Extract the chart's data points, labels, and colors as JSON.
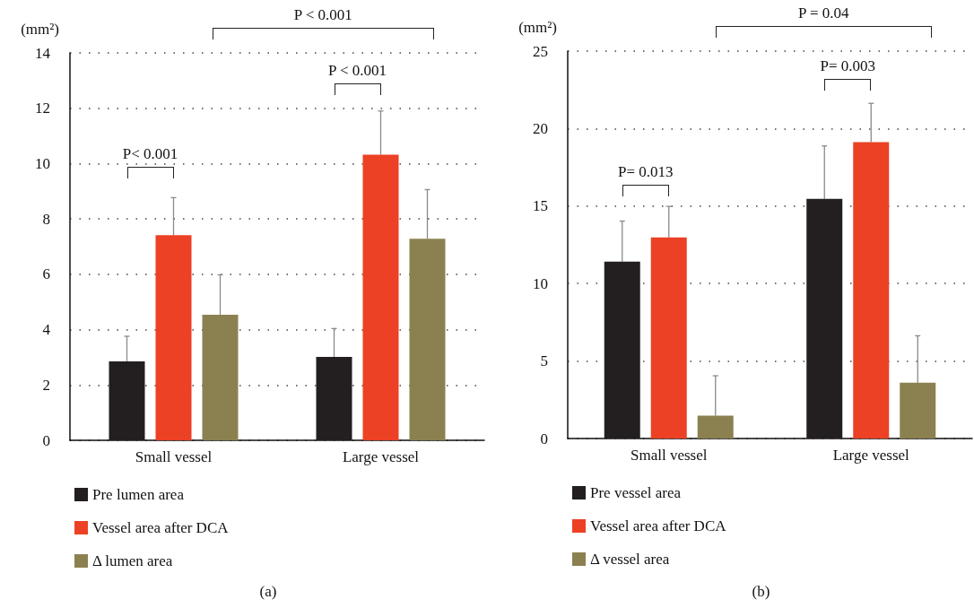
{
  "chart_data": [
    {
      "type": "bar",
      "ylabel": "(mm²)",
      "categories": [
        "Small vessel",
        "Large vessel"
      ],
      "ylim": [
        0,
        14
      ],
      "yticks": [
        0,
        2,
        4,
        6,
        8,
        10,
        12,
        14
      ],
      "grid": "y",
      "legend": "bottom",
      "series": [
        {
          "name": "Pre lumen area",
          "color": "#231f20",
          "values": [
            2.85,
            3.01
          ],
          "errors": [
            [
              2.85,
              3.76
            ],
            [
              3.01,
              4.04
            ]
          ]
        },
        {
          "name": "Vessel area after DCA",
          "color": "#ec4124",
          "values": [
            7.41,
            10.32
          ],
          "errors": [
            [
              7.41,
              8.77
            ],
            [
              10.32,
              11.9
            ]
          ]
        },
        {
          "name": "Δ lumen area",
          "color": "#8b8150",
          "values": [
            4.54,
            7.28
          ],
          "errors": [
            [
              4.54,
              5.98
            ],
            [
              7.28,
              9.06
            ]
          ]
        }
      ],
      "annotations": [
        "P< 0.001",
        "P < 0.001",
        "P < 0.001",
        "(a)"
      ]
    },
    {
      "type": "bar",
      "ylabel": "(mm²)",
      "categories": [
        "Small vessel",
        "Large vessel"
      ],
      "ylim": [
        0,
        25
      ],
      "yticks": [
        0,
        5,
        10,
        15,
        20,
        25
      ],
      "grid": "y",
      "legend": "bottom",
      "series": [
        {
          "name": "Pre vessel area",
          "color": "#231f20",
          "values": [
            11.42,
            15.47
          ],
          "errors": [
            [
              11.42,
              14.03
            ],
            [
              15.47,
              18.88
            ]
          ]
        },
        {
          "name": "Vessel area after DCA",
          "color": "#ec4124",
          "values": [
            12.98,
            19.13
          ],
          "errors": [
            [
              12.98,
              14.98
            ],
            [
              19.13,
              21.63
            ]
          ]
        },
        {
          "name": "Δ vessel area",
          "color": "#8b8150",
          "values": [
            1.48,
            3.6
          ],
          "errors": [
            [
              1.48,
              4.05
            ],
            [
              3.6,
              6.63
            ]
          ]
        }
      ],
      "annotations": [
        "P= 0.013",
        "P= 0.003",
        "P = 0.04",
        "(b)"
      ]
    }
  ]
}
